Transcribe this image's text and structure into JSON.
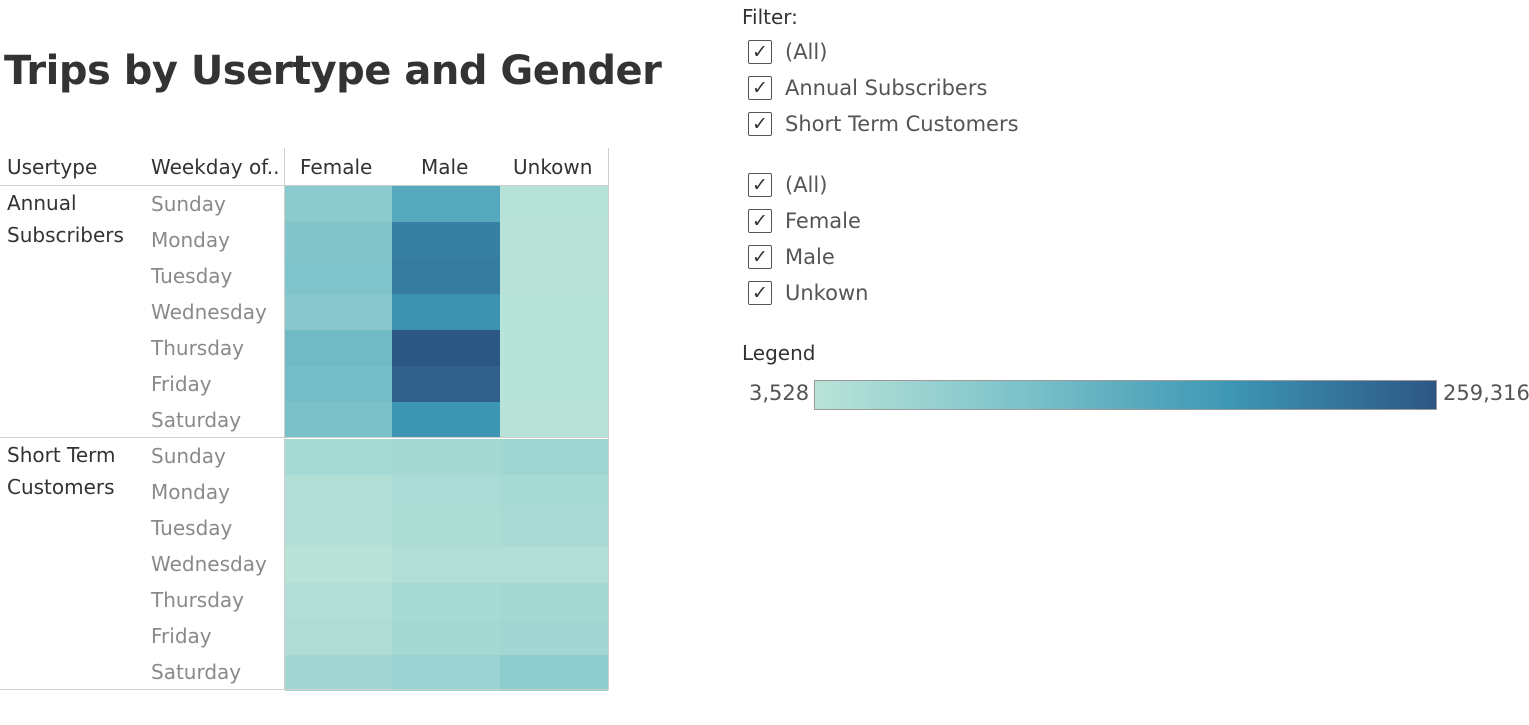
{
  "title": "Trips by Usertype and Gender",
  "headers": {
    "usertype": "Usertype",
    "weekday": "Weekday of..",
    "cols": [
      "Female",
      "Male",
      "Unkown"
    ]
  },
  "chart_data": {
    "type": "heatmap",
    "title": "Trips by Usertype and Gender",
    "columns": [
      "Female",
      "Male",
      "Unkown"
    ],
    "color_range": [
      3528,
      259316
    ],
    "color_scale": [
      "#b9e3d7",
      "#7cc2ca",
      "#3d97b4",
      "#2c5684"
    ],
    "groups": [
      {
        "label_lines": [
          "Annual",
          "Subscribers"
        ],
        "rows": [
          {
            "day": "Sunday",
            "values": [
              68000,
              140000,
              6000
            ]
          },
          {
            "day": "Monday",
            "values": [
              82000,
              205000,
              5000
            ]
          },
          {
            "day": "Tuesday",
            "values": [
              85000,
              210000,
              5000
            ]
          },
          {
            "day": "Wednesday",
            "values": [
              72000,
              180000,
              4800
            ]
          },
          {
            "day": "Thursday",
            "values": [
              105000,
              259316,
              4700
            ]
          },
          {
            "day": "Friday",
            "values": [
              98000,
              245000,
              4800
            ]
          },
          {
            "day": "Saturday",
            "values": [
              90000,
              175000,
              5000
            ]
          }
        ]
      },
      {
        "label_lines": [
          "Short Term",
          "Customers"
        ],
        "rows": [
          {
            "day": "Sunday",
            "values": [
              30000,
              32000,
              38000
            ]
          },
          {
            "day": "Monday",
            "values": [
              14000,
              24000,
              28000
            ]
          },
          {
            "day": "Tuesday",
            "values": [
              12000,
              22000,
              26000
            ]
          },
          {
            "day": "Wednesday",
            "values": [
              3528,
              15000,
              14000
            ]
          },
          {
            "day": "Thursday",
            "values": [
              14000,
              28000,
              33000
            ]
          },
          {
            "day": "Friday",
            "values": [
              18000,
              31000,
              36000
            ]
          },
          {
            "day": "Saturday",
            "values": [
              36000,
              48000,
              62000
            ]
          }
        ]
      }
    ]
  },
  "filters": {
    "label": "Filter:",
    "usertype": [
      {
        "label": "(All)",
        "checked": true
      },
      {
        "label": "Annual Subscribers",
        "checked": true
      },
      {
        "label": "Short Term Customers",
        "checked": true
      }
    ],
    "gender": [
      {
        "label": "(All)",
        "checked": true
      },
      {
        "label": "Female",
        "checked": true
      },
      {
        "label": "Male",
        "checked": true
      },
      {
        "label": "Unkown",
        "checked": true
      }
    ]
  },
  "legend": {
    "label": "Legend",
    "min_label": "3,528",
    "max_label": "259,316"
  },
  "checkmark": "✓"
}
